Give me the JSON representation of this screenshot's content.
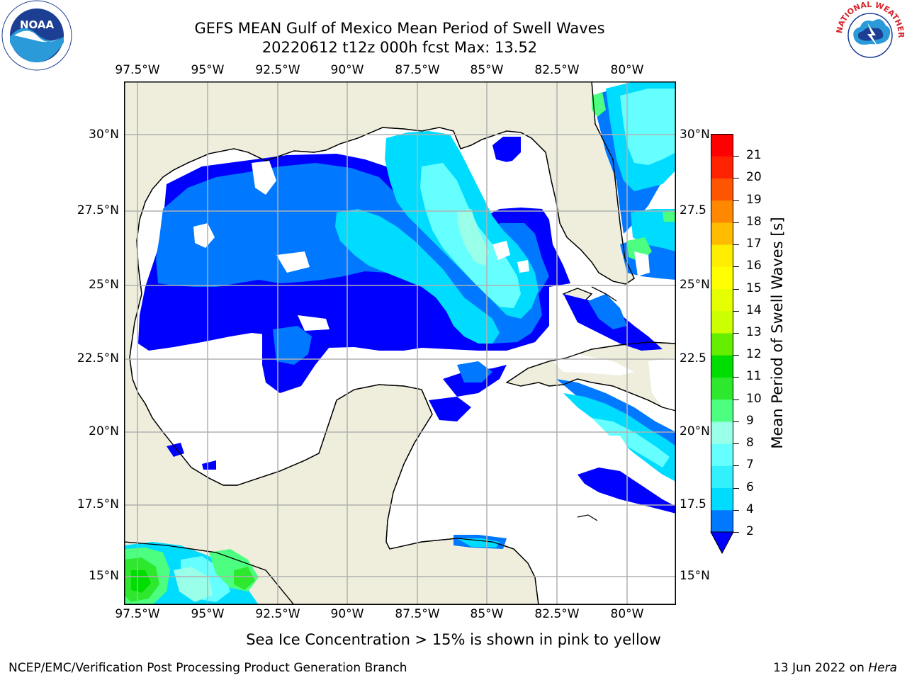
{
  "header": {
    "title_line1": "GEFS MEAN Gulf of Mexico Mean Period of Swell Waves",
    "title_line2": "20220612 t12z 000h fcst   Max: 13.52"
  },
  "map": {
    "lon_ticks": [
      "97.5°W",
      "95°W",
      "92.5°W",
      "90°W",
      "87.5°W",
      "85°W",
      "82.5°W",
      "80°W"
    ],
    "lat_ticks_left": [
      "30°N",
      "27.5°N",
      "25°N",
      "22.5°N",
      "20°N",
      "17.5°N",
      "15°N"
    ],
    "lat_ticks_right": [
      "30°N",
      "27.5",
      "25°N",
      "22.5",
      "20°N",
      "17.5",
      "15°N"
    ],
    "extent": {
      "lon_min": -98.0,
      "lon_max": -79.2,
      "lat_min": 14.0,
      "lat_max": 31.8
    },
    "colors": {
      "land": "#efeedd",
      "ocean_no_data": "#ffffff",
      "grid": "#b0b0b0",
      "coast": "#000000"
    }
  },
  "colorbar": {
    "title": "Mean Period of Swell Waves [s]",
    "levels": [
      "2",
      "4",
      "6",
      "7",
      "8",
      "9",
      "10",
      "11",
      "12",
      "13",
      "14",
      "15",
      "16",
      "17",
      "18",
      "19",
      "20",
      "21"
    ],
    "colors": [
      "#0078ff",
      "#00dcff",
      "#33f0ff",
      "#66ffff",
      "#99ffe8",
      "#4dff80",
      "#2ee82e",
      "#00dd00",
      "#66ee00",
      "#ccff00",
      "#e6ff00",
      "#ffff00",
      "#ffee00",
      "#ffbb00",
      "#ff8800",
      "#ff5500",
      "#ff2200",
      "#ff0000"
    ],
    "under_color": "#0000ff"
  },
  "footer": {
    "note": "Sea Ice Concentration > 15% is shown in pink to yellow",
    "credit": "NCEP/EMC/Verification Post Processing Product Generation Branch",
    "date": "13 Jun 2022 on ",
    "system": "Hera"
  },
  "logos": {
    "noaa_text": "NOAA",
    "nws_text": "NATIONAL WEATHER SERVICE"
  }
}
